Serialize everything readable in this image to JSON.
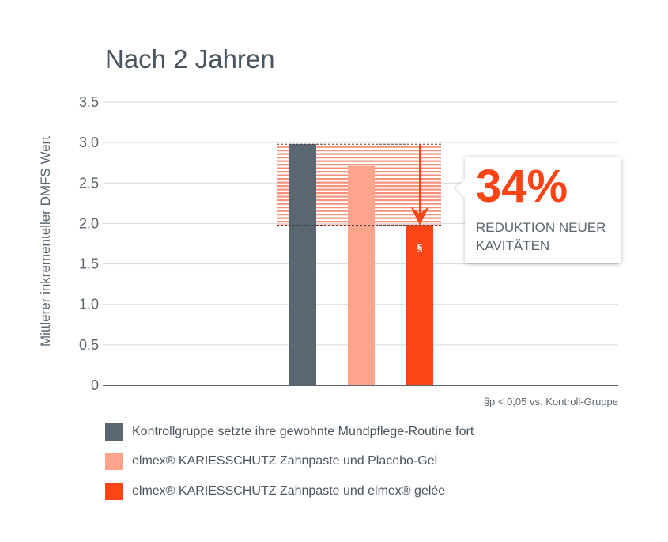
{
  "chart_data": {
    "type": "bar",
    "title": "Nach 2 Jahren",
    "ylabel": "Mittlerer inkrementeller DMFS Wert",
    "xlabel": "",
    "ylim": [
      0,
      3.5
    ],
    "yticks": [
      "0",
      "0.5",
      "1.0",
      "1.5",
      "2.0",
      "2.5",
      "3.0",
      "3.5"
    ],
    "grid": true,
    "categories": [
      "Kontrollgruppe",
      "Placebo-Gel",
      "elmex gelée"
    ],
    "values": [
      2.98,
      2.71,
      1.98
    ],
    "colors": [
      "#5a6670",
      "#fea48c",
      "#fc4516"
    ],
    "bar_labels": [
      "",
      "",
      "§"
    ],
    "annotation": {
      "value": "34%",
      "text": "REDUKTION NEUER KAVITÄTEN",
      "color": "#fc4516"
    },
    "footnote": "§p < 0,05 vs. Kontroll-Gruppe",
    "legend": [
      {
        "label": "Kontrollgruppe setzte ihre gewohnte Mundpflege-Routine fort",
        "color": "#5a6670"
      },
      {
        "label": "elmex® KARIESSCHUTZ Zahnpaste und Placebo-Gel",
        "color": "#fea48c"
      },
      {
        "label": "elmex® KARIESSCHUTZ Zahnpaste und elmex® gelée",
        "color": "#fc4516"
      }
    ],
    "legend_position": "bottom"
  }
}
